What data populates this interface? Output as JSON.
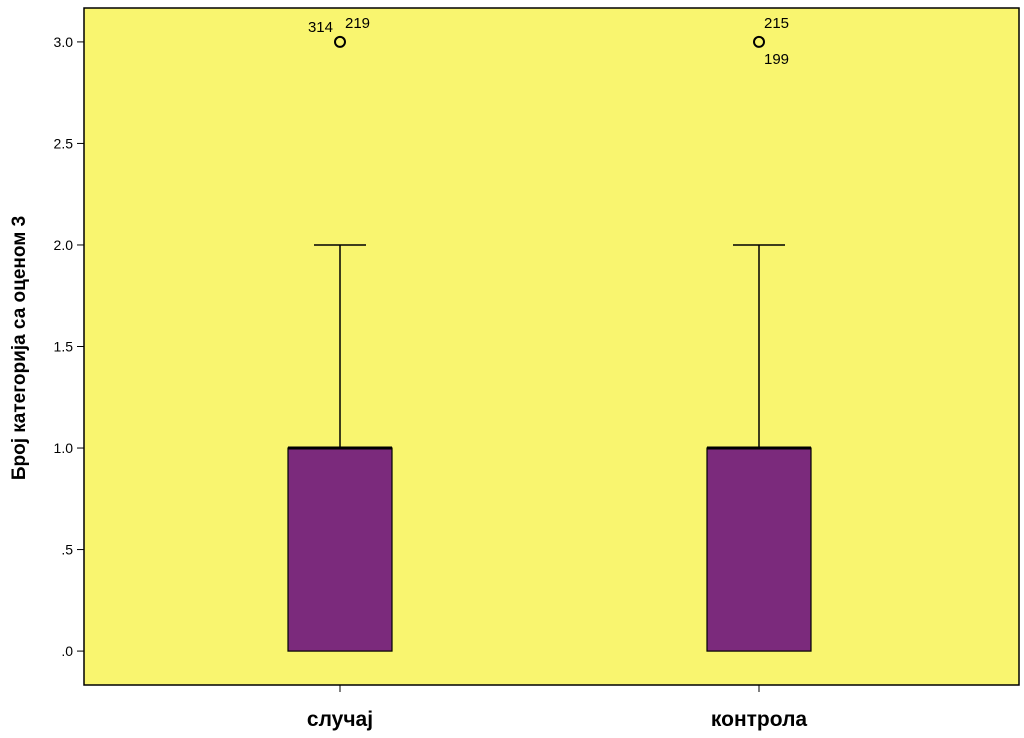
{
  "chart_data": {
    "type": "boxplot",
    "ylabel": "Број категорија са оценом 3",
    "xlabel": "",
    "ylim": [
      -0.167,
      3.167
    ],
    "yticks": [
      0,
      0.5,
      1.0,
      1.5,
      2.0,
      2.5,
      3.0
    ],
    "ytick_labels": [
      ".0",
      ".5",
      "1.0",
      "1.5",
      "2.0",
      "2.5",
      "3.0"
    ],
    "categories": [
      "случај",
      "контрола"
    ],
    "boxes": [
      {
        "category": "случај",
        "min": 0,
        "q1": 0,
        "median": 1,
        "q3": 1,
        "max": 2,
        "outliers": [
          {
            "value": 3,
            "labels": [
              "314",
              "219"
            ]
          }
        ]
      },
      {
        "category": "контрола",
        "min": 0,
        "q1": 0,
        "median": 1,
        "q3": 1,
        "max": 2,
        "outliers": [
          {
            "value": 3,
            "labels": [
              "215",
              "199"
            ]
          }
        ]
      }
    ],
    "grid": false,
    "colors": {
      "plot_background": "#f9f56f",
      "box_fill": "#7b2a7c",
      "line": "#000000"
    }
  }
}
